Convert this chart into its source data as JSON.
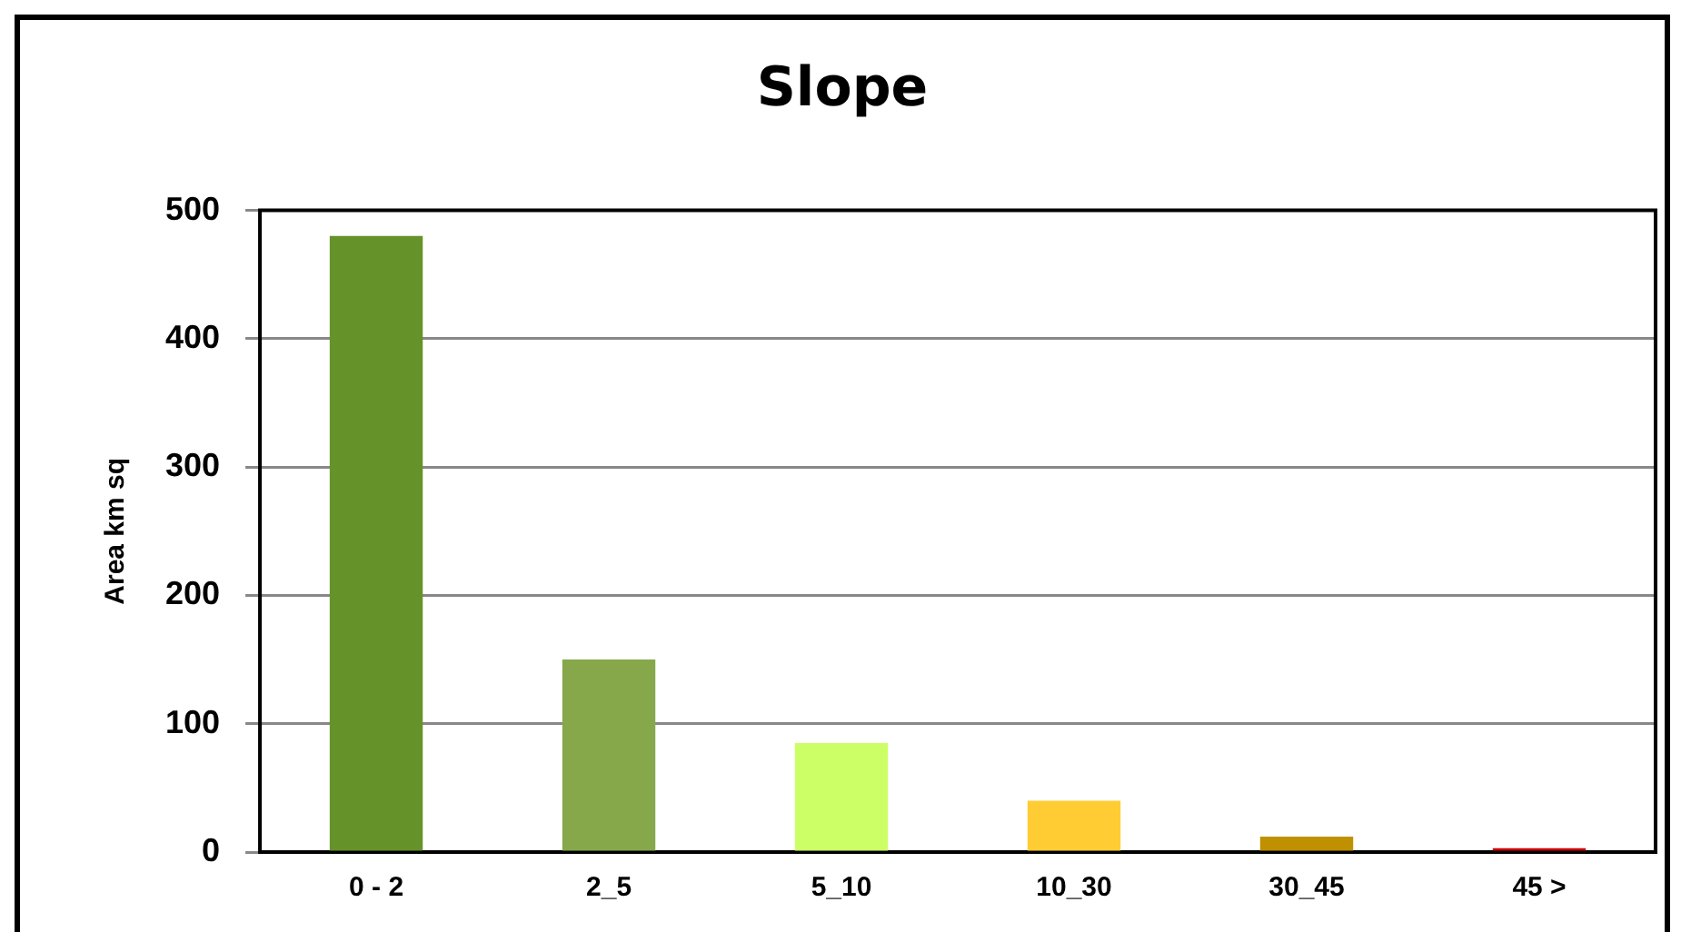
{
  "chart_data": {
    "type": "bar",
    "title": "Slope",
    "ylabel": "Area km sq",
    "categories": [
      "0 - 2",
      "2_5",
      "5_10",
      "10_30",
      "30_45",
      "45 >"
    ],
    "values": [
      480,
      150,
      85,
      40,
      12,
      3
    ],
    "colors": [
      "#66922a",
      "#86a84a",
      "#ccff66",
      "#ffcc33",
      "#bf9000",
      "#cc0000"
    ],
    "ylim": [
      0,
      500
    ],
    "yticks": [
      0,
      100,
      200,
      300,
      400,
      500
    ],
    "grid": "y",
    "legend": false
  }
}
